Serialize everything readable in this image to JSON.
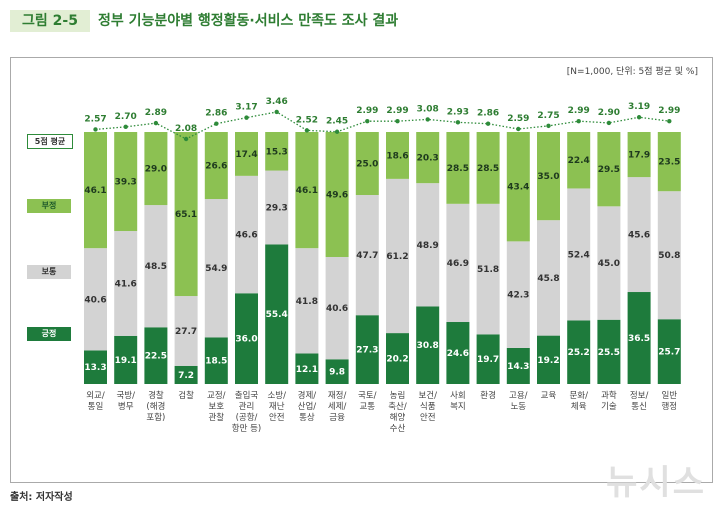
{
  "figure": {
    "tag": "그림 2-5",
    "title": "정부 기능분야별 행정활동·서비스 만족도 조사 결과",
    "unit_note": "[N=1,000, 단위: 5점 평균 및 %]",
    "source": "출처: 저자작성",
    "watermark": "뉴시스"
  },
  "colors": {
    "negative": "#8cc152",
    "neutral": "#d3d3d3",
    "positive": "#1e7b3c",
    "line": "#2e8b3a"
  },
  "chart_data": {
    "type": "bar",
    "stacked": true,
    "categories": [
      "외교/\n통일",
      "국방/\n병무",
      "경찰\n(해경\n포함)",
      "검찰",
      "교정/\n보호\n관찰",
      "출입국\n관리\n(공항/\n항만 등)",
      "소방/\n재난\n안전",
      "경제/\n산업/\n통상",
      "재정/\n세제/\n금융",
      "국토/\n교통",
      "농림\n축산/\n해양\n수산",
      "보건/\n식품\n안전",
      "사회\n복지",
      "환경",
      "고용/\n노동",
      "교육",
      "문화/\n체육",
      "과학\n기술",
      "정보/\n통신",
      "일반\n행정"
    ],
    "series": [
      {
        "name": "긍정",
        "values": [
          13.3,
          19.1,
          22.5,
          7.2,
          18.5,
          36.0,
          55.4,
          12.1,
          9.8,
          27.3,
          20.2,
          30.8,
          24.6,
          19.7,
          14.3,
          19.2,
          25.2,
          25.5,
          36.5,
          25.7
        ]
      },
      {
        "name": "보통",
        "values": [
          40.6,
          41.6,
          48.5,
          27.7,
          54.9,
          46.6,
          29.3,
          41.8,
          40.6,
          47.7,
          61.2,
          48.9,
          46.9,
          51.8,
          42.3,
          45.8,
          52.4,
          45.0,
          45.6,
          50.8
        ]
      },
      {
        "name": "부정",
        "values": [
          46.1,
          39.3,
          29.0,
          65.1,
          26.6,
          17.4,
          15.3,
          46.1,
          49.6,
          25.0,
          18.6,
          20.3,
          28.5,
          28.5,
          43.4,
          35.0,
          22.4,
          29.5,
          17.9,
          23.5
        ]
      },
      {
        "name": "5점 평균",
        "type": "line",
        "values": [
          2.57,
          2.7,
          2.89,
          2.08,
          2.86,
          3.17,
          3.46,
          2.52,
          2.45,
          2.99,
          2.99,
          3.08,
          2.93,
          2.86,
          2.59,
          2.75,
          2.99,
          2.9,
          3.19,
          2.99
        ]
      }
    ],
    "ylim": [
      0,
      100
    ],
    "legend": "left"
  }
}
